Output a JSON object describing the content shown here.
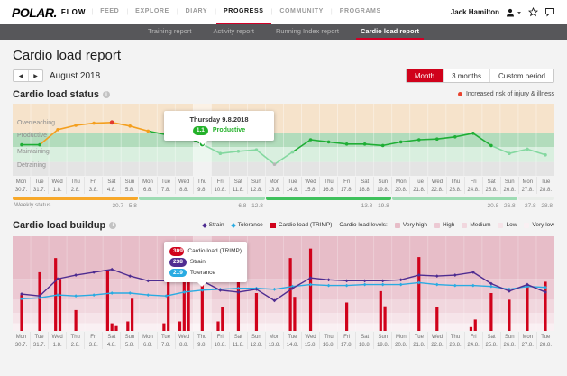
{
  "brand": {
    "logo": "POLAR.",
    "product": "FLOW"
  },
  "top_nav": {
    "items": [
      "FEED",
      "EXPLORE",
      "DIARY",
      "PROGRESS",
      "COMMUNITY",
      "PROGRAMS"
    ],
    "active": "PROGRESS",
    "user_name": "Jack Hamilton"
  },
  "sub_nav": {
    "items": [
      "Training report",
      "Activity report",
      "Running Index report",
      "Cardio load report"
    ],
    "active": "Cardio load report"
  },
  "page": {
    "title": "Cardio load report",
    "period_label": "August 2018",
    "period_buttons": [
      {
        "label": "Month",
        "active": true
      },
      {
        "label": "3 months",
        "active": false
      },
      {
        "label": "Custom period",
        "active": false
      }
    ]
  },
  "status_section": {
    "title": "Cardio load status",
    "risk_legend": "Increased risk of injury & illness",
    "weekly_status_label": "Weekly status",
    "weekly_segments": [
      {
        "label": "30.7 - 5.8",
        "days": 7,
        "color": "#f7a82a"
      },
      {
        "label": "6.8 - 12.8",
        "days": 7,
        "color": "#9fdcb4"
      },
      {
        "label": "13.8 - 19.8",
        "days": 7,
        "color": "#3fc15c"
      },
      {
        "label": "20.8 - 26.8",
        "days": 7,
        "color": "#9fdcb4"
      },
      {
        "label": "27.8 - 28.8",
        "days": 2,
        "color": "#e9ede9"
      }
    ],
    "tooltip": {
      "title": "Thursday 9.8.2018",
      "value": "1.1",
      "zone": "Productive",
      "zone_color": "#23b129"
    }
  },
  "buildup_section": {
    "title": "Cardio load buildup",
    "legend_series": [
      {
        "label": "Strain",
        "marker": "diamond",
        "color": "#4f2d91"
      },
      {
        "label": "Tolerance",
        "marker": "diamond",
        "color": "#29abe2"
      },
      {
        "label": "Cardio load (TRIMP)",
        "marker": "square",
        "color": "#d0021b"
      }
    ],
    "levels_label": "Cardio load levels:",
    "levels": [
      {
        "label": "Very high",
        "color": "#e7bdc8"
      },
      {
        "label": "High",
        "color": "#ecc9d3"
      },
      {
        "label": "Medium",
        "color": "#f1d7de"
      },
      {
        "label": "Low",
        "color": "#f6e4e9"
      },
      {
        "label": "Very low",
        "color": "#faf0f3"
      }
    ],
    "tooltip": {
      "rows": [
        {
          "value": "309",
          "label": "Cardio load (TRIMP)",
          "color": "#d0021b"
        },
        {
          "value": "238",
          "label": "Strain",
          "color": "#4f2d91"
        },
        {
          "value": "219",
          "label": "Tolerance",
          "color": "#29abe2"
        }
      ]
    }
  },
  "days": [
    {
      "dow": "Mon",
      "date": "30.7."
    },
    {
      "dow": "Tue",
      "date": "31.7."
    },
    {
      "dow": "Wed",
      "date": "1.8."
    },
    {
      "dow": "Thu",
      "date": "2.8."
    },
    {
      "dow": "Fri",
      "date": "3.8."
    },
    {
      "dow": "Sat",
      "date": "4.8."
    },
    {
      "dow": "Sun",
      "date": "5.8."
    },
    {
      "dow": "Mon",
      "date": "6.8."
    },
    {
      "dow": "Tue",
      "date": "7.8."
    },
    {
      "dow": "Wed",
      "date": "8.8."
    },
    {
      "dow": "Thu",
      "date": "9.8."
    },
    {
      "dow": "Fri",
      "date": "10.8."
    },
    {
      "dow": "Sat",
      "date": "11.8."
    },
    {
      "dow": "Sun",
      "date": "12.8."
    },
    {
      "dow": "Mon",
      "date": "13.8."
    },
    {
      "dow": "Tue",
      "date": "14.8."
    },
    {
      "dow": "Wed",
      "date": "15.8."
    },
    {
      "dow": "Thu",
      "date": "16.8."
    },
    {
      "dow": "Fri",
      "date": "17.8."
    },
    {
      "dow": "Sat",
      "date": "18.8."
    },
    {
      "dow": "Sun",
      "date": "19.8."
    },
    {
      "dow": "Mon",
      "date": "20.8."
    },
    {
      "dow": "Tue",
      "date": "21.8."
    },
    {
      "dow": "Wed",
      "date": "22.8."
    },
    {
      "dow": "Thu",
      "date": "23.8."
    },
    {
      "dow": "Fri",
      "date": "24.8."
    },
    {
      "dow": "Sat",
      "date": "25.8."
    },
    {
      "dow": "Sun",
      "date": "26.8."
    },
    {
      "dow": "Mon",
      "date": "27.8."
    },
    {
      "dow": "Tue",
      "date": "28.8."
    }
  ],
  "line_colors": {
    "green": "#1fae35",
    "lightgreen": "#84d8a0",
    "orange": "#f49f1e",
    "red": "#e23a2e",
    "gray": "#b5b5b5"
  },
  "chart_data": [
    {
      "type": "line",
      "title": "Cardio load status",
      "categories": [
        "Mon 30.7.",
        "Tue 31.7.",
        "Wed 1.8.",
        "Thu 2.8.",
        "Fri 3.8.",
        "Sat 4.8.",
        "Sun 5.8.",
        "Mon 6.8.",
        "Tue 7.8.",
        "Wed 8.8.",
        "Thu 9.8.",
        "Fri 10.8.",
        "Sat 11.8.",
        "Sun 12.8.",
        "Mon 13.8.",
        "Tue 14.8.",
        "Wed 15.8.",
        "Thu 16.8.",
        "Fri 17.8.",
        "Sat 18.8.",
        "Sun 19.8.",
        "Mon 20.8.",
        "Tue 21.8.",
        "Wed 22.8.",
        "Thu 23.8.",
        "Fri 24.8.",
        "Sat 25.8.",
        "Sun 26.8.",
        "Mon 27.8.",
        "Tue 28.8."
      ],
      "bands": [
        {
          "label": "Overreaching",
          "from_pct": 0,
          "to_pct": 41,
          "color": "#f6e3cb",
          "label_top_pct": 27
        },
        {
          "label": "Productive",
          "from_pct": 41,
          "to_pct": 60,
          "color": "#b2dcbc",
          "label_top_pct": 45
        },
        {
          "label": "Maintaining",
          "from_pct": 60,
          "to_pct": 81,
          "color": "#d9efdf",
          "label_top_pct": 67
        },
        {
          "label": "Detraining",
          "from_pct": 81,
          "to_pct": 100,
          "color": "#e4e4e4",
          "label_top_pct": 86
        }
      ],
      "selected_index": 10,
      "selected_value": "1.1",
      "selected_zone": "Productive",
      "points_pct_from_top": [
        57,
        57,
        36,
        30,
        27,
        26,
        31,
        38,
        43,
        45,
        56,
        69,
        66,
        64,
        84,
        67,
        50,
        53,
        56,
        56,
        58,
        53,
        50,
        49,
        46,
        41,
        58,
        69,
        63,
        71
      ],
      "point_colors": [
        "green",
        "green",
        "orange",
        "orange",
        "orange",
        "red",
        "orange",
        "orange",
        "green",
        "green",
        "green",
        "lightgreen",
        "lightgreen",
        "lightgreen",
        "gray",
        "lightgreen",
        "green",
        "green",
        "green",
        "green",
        "green",
        "green",
        "green",
        "green",
        "green",
        "green",
        "green",
        "lightgreen",
        "lightgreen",
        "lightgreen"
      ]
    },
    {
      "type": "bar+line",
      "title": "Cardio load buildup",
      "categories": [
        "Mon 30.7.",
        "Tue 31.7.",
        "Wed 1.8.",
        "Thu 2.8.",
        "Fri 3.8.",
        "Sat 4.8.",
        "Sun 5.8.",
        "Mon 6.8.",
        "Tue 7.8.",
        "Wed 8.8.",
        "Thu 9.8.",
        "Fri 10.8.",
        "Sat 11.8.",
        "Sun 12.8.",
        "Mon 13.8.",
        "Tue 14.8.",
        "Wed 15.8.",
        "Thu 16.8.",
        "Fri 17.8.",
        "Sat 18.8.",
        "Sun 19.8.",
        "Mon 20.8.",
        "Tue 21.8.",
        "Wed 22.8.",
        "Thu 23.8.",
        "Fri 24.8.",
        "Sat 25.8.",
        "Sun 26.8.",
        "Mon 27.8.",
        "Tue 28.8."
      ],
      "level_bands": [
        {
          "label": "Very high",
          "from_pct": 0,
          "to_pct": 45
        },
        {
          "label": "High",
          "from_pct": 45,
          "to_pct": 67
        },
        {
          "label": "Medium",
          "from_pct": 67,
          "to_pct": 81
        },
        {
          "label": "Low",
          "from_pct": 81,
          "to_pct": 92
        },
        {
          "label": "Very low",
          "from_pct": 92,
          "to_pct": 100
        }
      ],
      "selected_index": 10,
      "selected_values": {
        "trimp": 309,
        "strain": 238,
        "tolerance": 219
      },
      "bars_pct_height": [
        [
          38
        ],
        [
          62
        ],
        [
          77,
          55
        ],
        [
          22
        ],
        [],
        [
          63,
          8,
          6
        ],
        [
          10,
          34
        ],
        [],
        [
          8,
          58
        ],
        [
          10,
          57,
          55
        ],
        [
          52
        ],
        [
          10,
          25
        ],
        [
          76
        ],
        [
          40
        ],
        [],
        [
          77,
          36
        ],
        [
          87
        ],
        [],
        [
          30
        ],
        [],
        [
          42,
          26
        ],
        [],
        [
          78
        ],
        [
          25
        ],
        [],
        [
          4,
          12
        ],
        [
          40
        ],
        [
          33
        ],
        [
          49
        ],
        [
          52
        ]
      ],
      "series": [
        {
          "name": "Strain",
          "pct_from_top": [
            61,
            63,
            45,
            41,
            38,
            35,
            42,
            47,
            47,
            47,
            47,
            57,
            59,
            56,
            68,
            55,
            44,
            46,
            47,
            47,
            47,
            46,
            41,
            42,
            41,
            38,
            50,
            58,
            51,
            59
          ]
        },
        {
          "name": "Tolerance",
          "pct_from_top": [
            66,
            65,
            62,
            63,
            62,
            60,
            60,
            62,
            63,
            59,
            57,
            56,
            55,
            55,
            56,
            53,
            51,
            52,
            52,
            51,
            51,
            51,
            49,
            51,
            52,
            52,
            53,
            56,
            53,
            54
          ]
        }
      ]
    }
  ]
}
